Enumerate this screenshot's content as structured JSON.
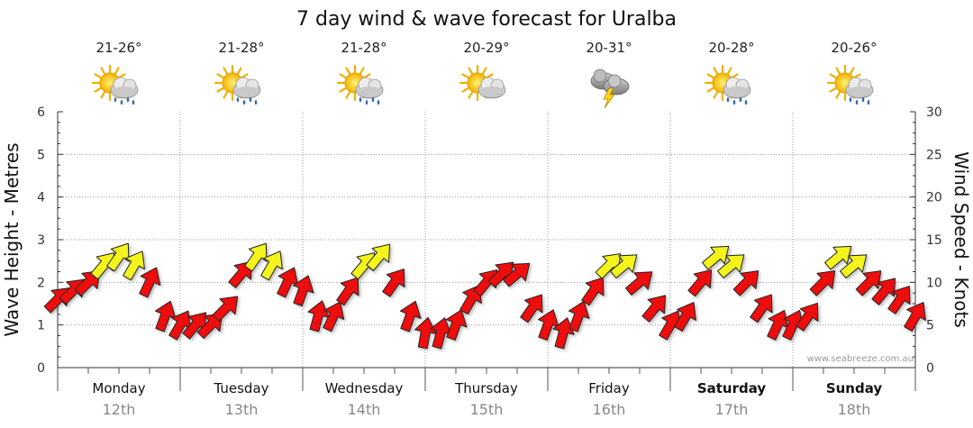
{
  "chart_data": {
    "type": "line",
    "title": "7 day wind & wave forecast for Uralba",
    "ylabel_left": "Wave Height - Metres",
    "ylabel_right": "Wind Speed - Knots",
    "ylim_left": [
      0,
      6
    ],
    "ylim_right": [
      0,
      30
    ],
    "yticks_left": [
      "0",
      "1",
      "2",
      "3",
      "4",
      "5",
      "6"
    ],
    "yticks_right": [
      "0",
      "5",
      "10",
      "15",
      "20",
      "25",
      "30"
    ],
    "grid": true,
    "watermark": "www.seabreeze.com.au",
    "days": [
      {
        "name": "Monday",
        "date": "12th",
        "bold": false,
        "temp": "21-26°",
        "icon": "sun-cloud-showers-icon"
      },
      {
        "name": "Tuesday",
        "date": "13th",
        "bold": false,
        "temp": "21-28°",
        "icon": "sun-cloud-showers-icon"
      },
      {
        "name": "Wednesday",
        "date": "14th",
        "bold": false,
        "temp": "21-28°",
        "icon": "sun-cloud-showers-icon"
      },
      {
        "name": "Thursday",
        "date": "15th",
        "bold": false,
        "temp": "20-29°",
        "icon": "sun-cloud-icon"
      },
      {
        "name": "Friday",
        "date": "16th",
        "bold": false,
        "temp": "20-31°",
        "icon": "thunderstorm-icon"
      },
      {
        "name": "Saturday",
        "date": "17th",
        "bold": true,
        "temp": "20-28°",
        "icon": "sun-cloud-showers-icon"
      },
      {
        "name": "Sunday",
        "date": "18th",
        "bold": true,
        "temp": "20-26°",
        "icon": "sun-cloud-showers-icon"
      }
    ],
    "colors": {
      "strong_wind": "#ee1111",
      "light_wind": "#f4f41c",
      "arrow_outline": "#222222",
      "grid": "#999999"
    },
    "series": [
      {
        "name": "Wind Speed",
        "unit": "knots",
        "x_hours": [
          0,
          3,
          6,
          9,
          12,
          15,
          18,
          21,
          24,
          27,
          30,
          33,
          36,
          39,
          42,
          45,
          48,
          51,
          54,
          57,
          60,
          63,
          66,
          69,
          72,
          75,
          78,
          81,
          84,
          87,
          90,
          93,
          96,
          99,
          102,
          105,
          108,
          111,
          114,
          117,
          120,
          123,
          126,
          129,
          132,
          135,
          138,
          141,
          144,
          147,
          150,
          153,
          156,
          159,
          162,
          165,
          168
        ],
        "values": [
          8,
          9,
          10,
          12,
          13,
          12,
          10,
          6,
          5,
          5,
          5,
          7,
          11,
          13,
          12,
          10,
          9,
          6,
          6,
          9,
          12,
          13,
          10,
          6,
          4,
          4,
          5,
          8,
          10,
          11,
          11,
          7,
          5,
          4,
          6,
          9,
          12,
          12,
          10,
          7,
          5,
          6,
          10,
          13,
          12,
          10,
          7,
          5,
          5,
          6,
          10,
          13,
          12,
          10,
          9,
          8,
          6
        ],
        "direction_deg": [
          225,
          225,
          225,
          220,
          215,
          210,
          205,
          200,
          210,
          220,
          225,
          225,
          220,
          215,
          210,
          205,
          200,
          195,
          205,
          215,
          220,
          220,
          215,
          200,
          190,
          195,
          200,
          210,
          220,
          225,
          230,
          215,
          200,
          195,
          200,
          215,
          225,
          230,
          230,
          220,
          210,
          210,
          220,
          230,
          230,
          225,
          215,
          205,
          205,
          215,
          225,
          230,
          230,
          225,
          220,
          215,
          210
        ]
      }
    ]
  }
}
